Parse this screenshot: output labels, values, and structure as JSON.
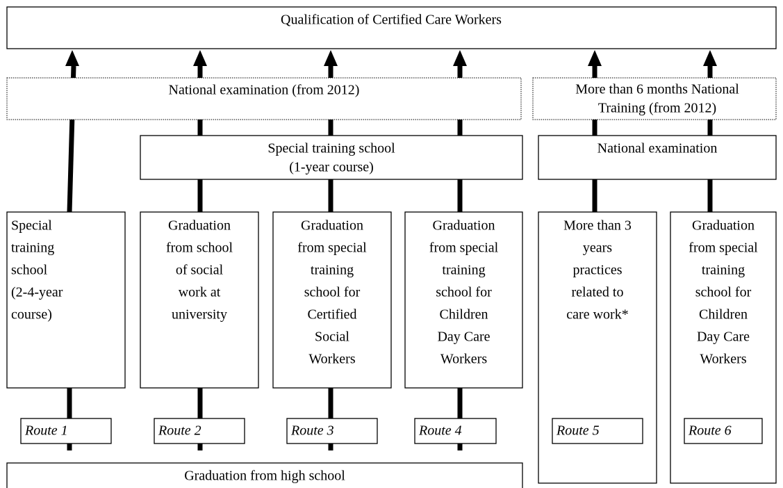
{
  "title": "Qualification of Certified Care Workers",
  "stages": {
    "exam_2012": "National examination (from 2012)",
    "training_2012": [
      "More than 6 months National",
      "Training (from 2012)"
    ],
    "special_school": [
      "Special training school",
      "(1-year course)"
    ],
    "exam": "National examination",
    "high_school": "Graduation from high school"
  },
  "routes": [
    {
      "label": "Route 1",
      "lines": [
        "Special",
        "training",
        "school",
        "(2-4-year",
        "course)"
      ]
    },
    {
      "label": "Route 2",
      "lines": [
        "Graduation",
        "from school",
        "of social",
        "work at",
        "university"
      ]
    },
    {
      "label": "Route 3",
      "lines": [
        "Graduation",
        "from special",
        "training",
        "school for",
        "Certified",
        "Social",
        "Workers"
      ]
    },
    {
      "label": "Route 4",
      "lines": [
        "Graduation",
        "from special",
        "training",
        "school for",
        "Children",
        "Day Care",
        "Workers"
      ]
    },
    {
      "label": "Route 5",
      "lines": [
        "More than 3",
        "years",
        "practices",
        "related to",
        "care work*"
      ]
    },
    {
      "label": "Route 6",
      "lines": [
        "Graduation",
        "from special",
        "training",
        "school for",
        "Children",
        "Day Care",
        "Workers"
      ]
    }
  ]
}
